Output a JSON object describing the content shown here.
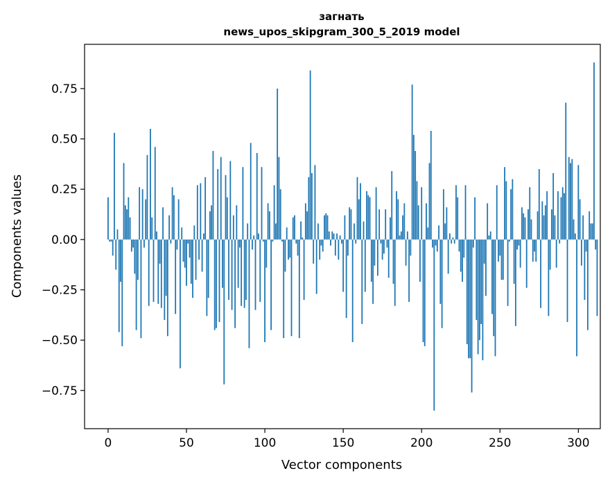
{
  "chart_data": {
    "type": "bar",
    "title_line1": "загнать",
    "title_line2": "news_upos_skipgram_300_5_2019 model",
    "xlabel": "Vector components",
    "ylabel": "Components values",
    "xlim": [
      -15,
      314
    ],
    "ylim": [
      -0.94,
      0.97
    ],
    "x_ticks": [
      0,
      50,
      100,
      150,
      200,
      250,
      300
    ],
    "y_ticks": [
      0.75,
      0.5,
      0.25,
      0.0,
      -0.25,
      -0.5,
      -0.75
    ],
    "y_tick_labels": [
      "0.75",
      "0.50",
      "0.25",
      "0.00",
      "−0.25",
      "−0.50",
      "−0.75"
    ],
    "grid": false,
    "bar_color": "#1f77b4",
    "values": [
      0.21,
      -0.01,
      -0.01,
      -0.08,
      0.53,
      -0.15,
      0.05,
      -0.46,
      -0.21,
      -0.53,
      0.38,
      0.17,
      0.15,
      0.21,
      0.11,
      -0.06,
      -0.04,
      -0.17,
      -0.45,
      -0.2,
      0.26,
      -0.49,
      0.25,
      -0.04,
      0.2,
      0.42,
      -0.33,
      0.55,
      0.11,
      -0.31,
      0.46,
      0.04,
      -0.32,
      -0.12,
      -0.34,
      0.16,
      -0.4,
      -0.28,
      -0.48,
      0.12,
      -0.02,
      0.26,
      0.22,
      -0.37,
      -0.05,
      0.2,
      -0.64,
      0.06,
      -0.11,
      -0.14,
      -0.23,
      -0.02,
      -0.09,
      -0.22,
      -0.29,
      0.07,
      -0.2,
      0.27,
      -0.1,
      0.28,
      -0.16,
      0.03,
      0.31,
      -0.38,
      -0.29,
      0.14,
      0.17,
      0.44,
      -0.45,
      -0.44,
      0.35,
      -0.41,
      0.41,
      -0.24,
      -0.72,
      0.32,
      0.21,
      -0.3,
      0.39,
      -0.35,
      0.12,
      -0.44,
      0.17,
      -0.24,
      -0.04,
      -0.33,
      0.36,
      -0.34,
      -0.3,
      0.08,
      -0.54,
      0.48,
      -0.05,
      0.02,
      -0.35,
      0.43,
      0.03,
      -0.31,
      0.36,
      -0.01,
      -0.51,
      -0.14,
      0.18,
      0.14,
      -0.45,
      -0.01,
      0.27,
      0.08,
      0.75,
      0.41,
      0.25,
      -0.01,
      -0.49,
      -0.16,
      0.06,
      -0.1,
      -0.09,
      -0.48,
      0.11,
      0.12,
      -0.02,
      -0.08,
      -0.49,
      0.09,
      0.01,
      -0.3,
      0.18,
      0.14,
      0.31,
      0.84,
      0.33,
      -0.12,
      0.37,
      -0.27,
      0.08,
      -0.1,
      -0.03,
      -0.06,
      0.12,
      0.13,
      0.12,
      0.04,
      -0.03,
      0.04,
      0.03,
      -0.08,
      0.03,
      -0.1,
      0.02,
      -0.02,
      -0.26,
      0.12,
      -0.39,
      -0.08,
      0.16,
      0.15,
      -0.51,
      0.08,
      -0.02,
      0.31,
      0.2,
      0.28,
      -0.42,
      0.09,
      -0.26,
      0.24,
      0.22,
      0.21,
      -0.21,
      -0.32,
      -0.13,
      0.26,
      -0.18,
      0.15,
      -0.02,
      -0.1,
      -0.07,
      0.15,
      -0.04,
      -0.19,
      0.11,
      0.34,
      -0.22,
      -0.33,
      0.24,
      0.2,
      0.02,
      0.04,
      0.12,
      0.18,
      -0.13,
      0.04,
      -0.31,
      -0.08,
      0.77,
      0.52,
      0.44,
      0.29,
      0.17,
      -0.21,
      0.26,
      -0.51,
      -0.53,
      0.18,
      0.06,
      0.38,
      0.54,
      -0.04,
      -0.85,
      -0.03,
      -0.06,
      0.07,
      -0.32,
      -0.44,
      0.25,
      0.08,
      0.16,
      -0.17,
      0.03,
      -0.02,
      0.01,
      -0.02,
      0.27,
      0.21,
      -0.06,
      -0.16,
      -0.21,
      -0.09,
      0.27,
      -0.52,
      -0.59,
      -0.59,
      -0.76,
      -0.04,
      0.21,
      -0.4,
      -0.57,
      -0.5,
      -0.42,
      -0.6,
      -0.12,
      -0.28,
      0.18,
      0.02,
      0.04,
      -0.37,
      -0.48,
      -0.58,
      0.27,
      -0.11,
      -0.08,
      -0.2,
      -0.2,
      0.36,
      0.29,
      -0.33,
      -0.01,
      0.25,
      0.3,
      -0.22,
      -0.43,
      -0.05,
      -0.03,
      -0.14,
      0.16,
      0.13,
      0.11,
      -0.24,
      0.15,
      0.26,
      0.1,
      -0.11,
      -0.06,
      -0.11,
      0.14,
      0.35,
      -0.34,
      0.19,
      0.12,
      0.17,
      0.24,
      -0.38,
      -0.15,
      0.15,
      0.33,
      0.12,
      -0.14,
      0.24,
      -0.02,
      0.21,
      0.26,
      0.23,
      0.68,
      -0.41,
      0.41,
      0.38,
      0.4,
      0.1,
      0.03,
      -0.58,
      0.37,
      0.2,
      -0.13,
      0.12,
      -0.3,
      -0.06,
      -0.45,
      0.14,
      0.08,
      0.08,
      0.88,
      -0.05,
      -0.38
    ]
  }
}
